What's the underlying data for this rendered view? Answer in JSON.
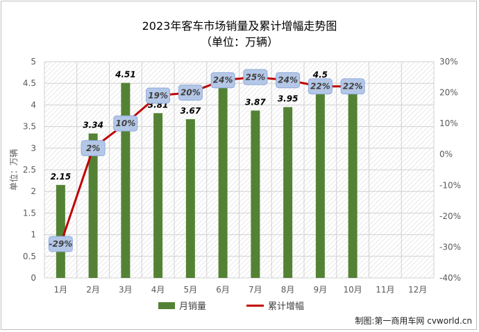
{
  "chart_data": {
    "type": "bar",
    "title": "2023年客车市场销量及累计增幅走势图",
    "subtitle": "（单位：万辆）",
    "ylabel": "单位：万辆",
    "categories": [
      "1月",
      "2月",
      "3月",
      "4月",
      "5月",
      "6月",
      "7月",
      "8月",
      "9月",
      "10月",
      "11月",
      "12月"
    ],
    "ylim": [
      0,
      5
    ],
    "y_ticks": [
      "0",
      "0.5",
      "1",
      "1.5",
      "2",
      "2.5",
      "3",
      "3.5",
      "4",
      "4.5",
      "5"
    ],
    "y2lim": [
      -40,
      30
    ],
    "y2_ticks": [
      "-40%",
      "-30%",
      "-20%",
      "-10%",
      "0%",
      "10%",
      "20%",
      "30%"
    ],
    "series": [
      {
        "name": "月销量",
        "type": "bar",
        "color": "#548235",
        "values": [
          2.15,
          3.34,
          4.51,
          3.81,
          3.67,
          4.48,
          3.87,
          3.95,
          4.5,
          4.25,
          null,
          null
        ],
        "labels": [
          "2.15",
          "3.34",
          "4.51",
          "3.81",
          "3.67",
          "4.48",
          "3.87",
          "3.95",
          "4.5",
          "4.25",
          "",
          ""
        ]
      },
      {
        "name": "累计增幅",
        "type": "line",
        "axis": "right",
        "color": "#c00000",
        "values": [
          -29,
          2,
          10,
          19,
          20,
          24,
          25,
          24,
          22,
          22,
          null,
          null
        ],
        "labels": [
          "-29%",
          "2%",
          "10%",
          "19%",
          "20%",
          "24%",
          "25%",
          "24%",
          "22%",
          "22%",
          "",
          ""
        ]
      }
    ],
    "grid": true,
    "legend_position": "bottom"
  },
  "credit": "制图:第一商用车网 cvworld.cn"
}
